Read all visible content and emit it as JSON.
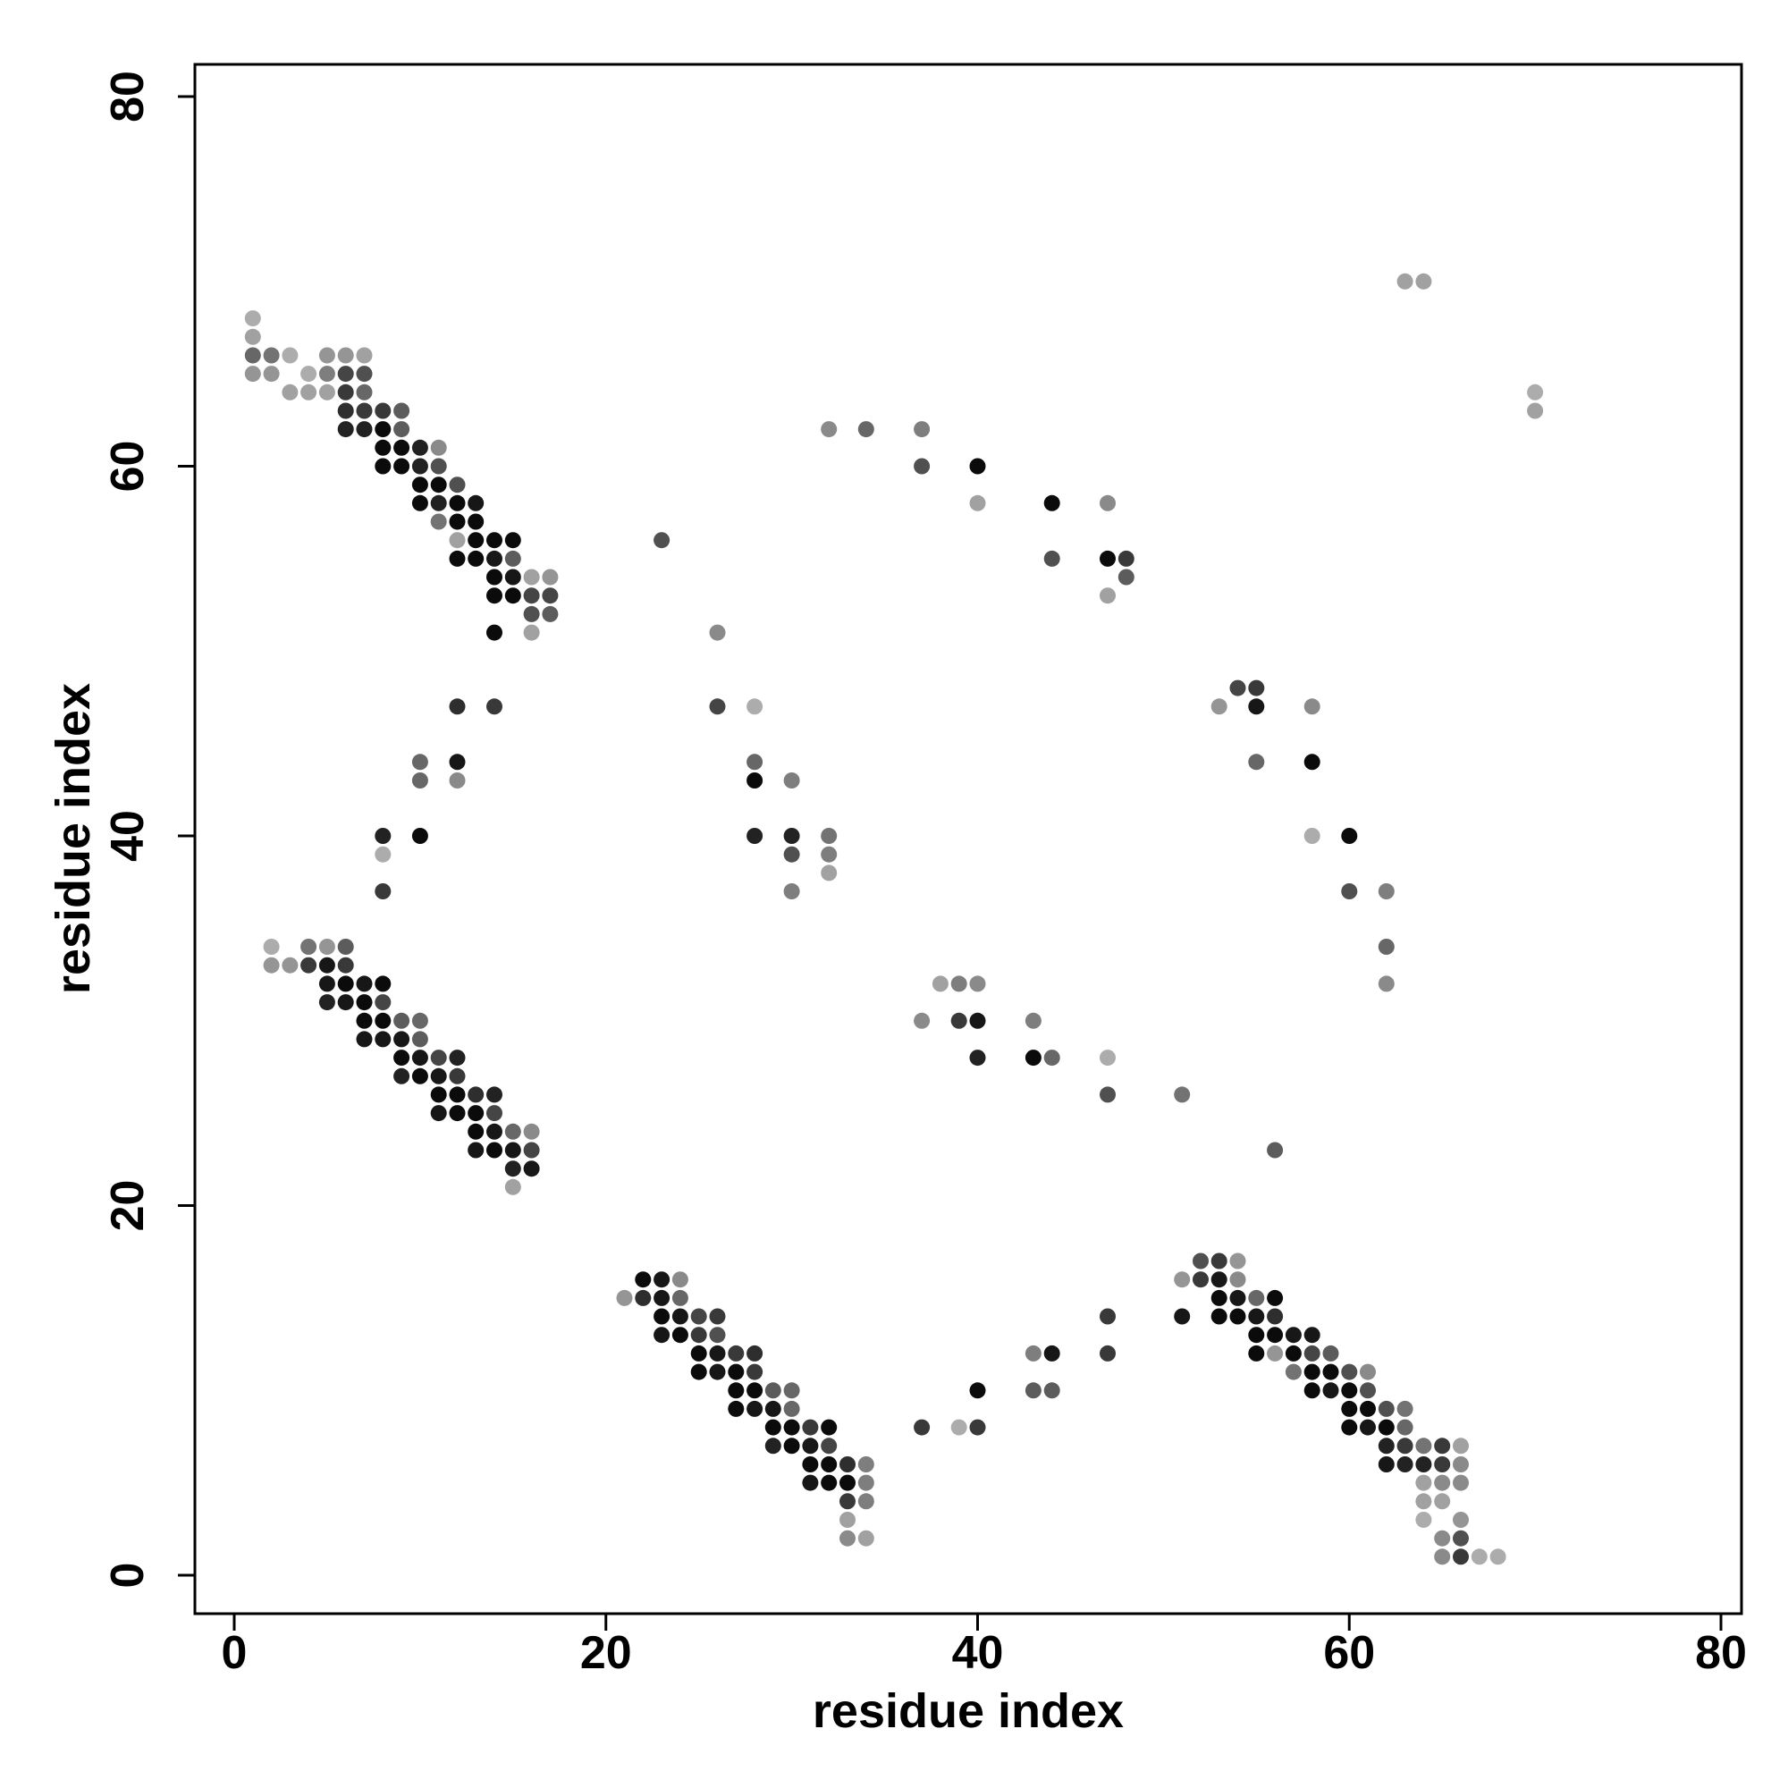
{
  "chart_data": {
    "type": "scatter",
    "title": "",
    "xlabel": "residue index",
    "ylabel": "residue index",
    "xlim": [
      -2,
      81
    ],
    "ylim": [
      -2,
      81
    ],
    "x_ticks": [
      "0",
      "20",
      "40",
      "60",
      "80"
    ],
    "y_ticks": [
      "0",
      "20",
      "40",
      "60",
      "80"
    ],
    "grid": false,
    "legend": "none",
    "point_color_scale": "grayscale: darker = stronger contact",
    "points": [
      [
        1,
        68,
        0.25
      ],
      [
        1,
        67,
        0.3
      ],
      [
        1,
        66,
        0.55
      ],
      [
        1,
        65,
        0.35
      ],
      [
        2,
        66,
        0.5
      ],
      [
        2,
        65,
        0.35
      ],
      [
        3,
        66,
        0.25
      ],
      [
        3,
        64,
        0.3
      ],
      [
        4,
        65,
        0.25
      ],
      [
        4,
        64,
        0.3
      ],
      [
        5,
        66,
        0.35
      ],
      [
        5,
        65,
        0.45
      ],
      [
        5,
        64,
        0.3
      ],
      [
        6,
        66,
        0.35
      ],
      [
        6,
        65,
        0.7
      ],
      [
        6,
        64,
        0.75
      ],
      [
        6,
        63,
        0.8
      ],
      [
        6,
        62,
        0.85
      ],
      [
        7,
        66,
        0.3
      ],
      [
        7,
        65,
        0.65
      ],
      [
        7,
        64,
        0.55
      ],
      [
        7,
        63,
        0.75
      ],
      [
        7,
        62,
        0.85
      ],
      [
        8,
        63,
        0.75
      ],
      [
        8,
        62,
        0.95
      ],
      [
        8,
        61,
        0.95
      ],
      [
        8,
        60,
        0.95
      ],
      [
        9,
        63,
        0.6
      ],
      [
        9,
        62,
        0.6
      ],
      [
        9,
        61,
        0.95
      ],
      [
        9,
        60,
        0.95
      ],
      [
        10,
        61,
        0.85
      ],
      [
        10,
        60,
        0.85
      ],
      [
        10,
        59,
        0.95
      ],
      [
        10,
        58,
        0.95
      ],
      [
        11,
        61,
        0.4
      ],
      [
        11,
        60,
        0.65
      ],
      [
        11,
        59,
        0.95
      ],
      [
        11,
        58,
        0.85
      ],
      [
        11,
        57,
        0.5
      ],
      [
        12,
        59,
        0.65
      ],
      [
        12,
        58,
        0.95
      ],
      [
        12,
        57,
        0.95
      ],
      [
        12,
        56,
        0.3
      ],
      [
        12,
        55,
        0.95
      ],
      [
        13,
        58,
        0.9
      ],
      [
        13,
        57,
        0.95
      ],
      [
        13,
        56,
        0.95
      ],
      [
        13,
        55,
        0.95
      ],
      [
        14,
        56,
        0.95
      ],
      [
        14,
        55,
        0.9
      ],
      [
        14,
        54,
        0.95
      ],
      [
        14,
        53,
        0.95
      ],
      [
        14,
        51,
        0.95
      ],
      [
        15,
        56,
        0.95
      ],
      [
        15,
        55,
        0.6
      ],
      [
        15,
        54,
        0.9
      ],
      [
        15,
        53,
        0.95
      ],
      [
        16,
        54,
        0.3
      ],
      [
        16,
        53,
        0.7
      ],
      [
        16,
        52,
        0.65
      ],
      [
        16,
        51,
        0.3
      ],
      [
        17,
        54,
        0.35
      ],
      [
        17,
        53,
        0.7
      ],
      [
        17,
        52,
        0.6
      ],
      [
        12,
        47,
        0.8
      ],
      [
        14,
        47,
        0.75
      ],
      [
        10,
        44,
        0.55
      ],
      [
        10,
        43,
        0.55
      ],
      [
        12,
        44,
        0.9
      ],
      [
        12,
        43,
        0.4
      ],
      [
        8,
        40,
        0.85
      ],
      [
        10,
        40,
        0.95
      ],
      [
        8,
        39,
        0.25
      ],
      [
        8,
        37,
        0.75
      ],
      [
        2,
        34,
        0.25
      ],
      [
        2,
        33,
        0.35
      ],
      [
        3,
        33,
        0.35
      ],
      [
        4,
        34,
        0.5
      ],
      [
        4,
        33,
        0.75
      ],
      [
        5,
        34,
        0.35
      ],
      [
        5,
        33,
        0.9
      ],
      [
        6,
        34,
        0.6
      ],
      [
        6,
        33,
        0.75
      ],
      [
        6,
        32,
        0.95
      ],
      [
        5,
        32,
        0.9
      ],
      [
        5,
        31,
        0.85
      ],
      [
        6,
        31,
        0.9
      ],
      [
        7,
        32,
        0.9
      ],
      [
        7,
        31,
        0.95
      ],
      [
        7,
        30,
        0.95
      ],
      [
        7,
        29,
        0.9
      ],
      [
        8,
        32,
        0.95
      ],
      [
        8,
        31,
        0.7
      ],
      [
        8,
        30,
        0.95
      ],
      [
        8,
        29,
        0.9
      ],
      [
        9,
        30,
        0.6
      ],
      [
        9,
        29,
        0.9
      ],
      [
        9,
        28,
        0.95
      ],
      [
        9,
        27,
        0.85
      ],
      [
        10,
        30,
        0.55
      ],
      [
        10,
        29,
        0.6
      ],
      [
        10,
        28,
        0.9
      ],
      [
        10,
        27,
        0.95
      ],
      [
        11,
        28,
        0.7
      ],
      [
        11,
        27,
        0.9
      ],
      [
        11,
        26,
        0.95
      ],
      [
        11,
        25,
        0.9
      ],
      [
        12,
        28,
        0.85
      ],
      [
        12,
        27,
        0.75
      ],
      [
        12,
        26,
        0.95
      ],
      [
        12,
        25,
        0.95
      ],
      [
        13,
        26,
        0.8
      ],
      [
        13,
        25,
        0.95
      ],
      [
        13,
        24,
        0.95
      ],
      [
        13,
        23,
        0.9
      ],
      [
        14,
        26,
        0.85
      ],
      [
        14,
        25,
        0.7
      ],
      [
        14,
        24,
        0.9
      ],
      [
        14,
        23,
        0.95
      ],
      [
        15,
        24,
        0.55
      ],
      [
        15,
        23,
        0.9
      ],
      [
        15,
        22,
        0.85
      ],
      [
        15,
        21,
        0.3
      ],
      [
        16,
        24,
        0.4
      ],
      [
        16,
        23,
        0.7
      ],
      [
        16,
        22,
        0.9
      ],
      [
        23,
        56,
        0.65
      ],
      [
        26,
        51,
        0.4
      ],
      [
        26,
        47,
        0.7
      ],
      [
        28,
        47,
        0.25
      ],
      [
        28,
        44,
        0.55
      ],
      [
        28,
        43,
        0.95
      ],
      [
        28,
        40,
        0.85
      ],
      [
        30,
        43,
        0.45
      ],
      [
        30,
        40,
        0.85
      ],
      [
        30,
        39,
        0.65
      ],
      [
        30,
        37,
        0.45
      ],
      [
        32,
        40,
        0.5
      ],
      [
        32,
        39,
        0.45
      ],
      [
        32,
        38,
        0.3
      ],
      [
        32,
        62,
        0.4
      ],
      [
        34,
        62,
        0.55
      ],
      [
        37,
        62,
        0.45
      ],
      [
        37,
        60,
        0.65
      ],
      [
        40,
        60,
        0.95
      ],
      [
        40,
        58,
        0.3
      ],
      [
        44,
        58,
        0.95
      ],
      [
        44,
        55,
        0.65
      ],
      [
        47,
        58,
        0.4
      ],
      [
        47,
        55,
        0.95
      ],
      [
        47,
        53,
        0.3
      ],
      [
        48,
        55,
        0.75
      ],
      [
        48,
        54,
        0.6
      ],
      [
        53,
        47,
        0.35
      ],
      [
        54,
        48,
        0.7
      ],
      [
        55,
        48,
        0.75
      ],
      [
        55,
        47,
        0.9
      ],
      [
        55,
        44,
        0.55
      ],
      [
        58,
        47,
        0.4
      ],
      [
        58,
        44,
        0.95
      ],
      [
        58,
        40,
        0.25
      ],
      [
        60,
        40,
        0.95
      ],
      [
        60,
        37,
        0.65
      ],
      [
        62,
        37,
        0.45
      ],
      [
        62,
        34,
        0.55
      ],
      [
        62,
        32,
        0.4
      ],
      [
        63,
        70,
        0.3
      ],
      [
        64,
        70,
        0.3
      ],
      [
        70,
        64,
        0.25
      ],
      [
        70,
        63,
        0.3
      ],
      [
        37,
        30,
        0.4
      ],
      [
        38,
        32,
        0.3
      ],
      [
        39,
        32,
        0.45
      ],
      [
        39,
        30,
        0.75
      ],
      [
        40,
        32,
        0.4
      ],
      [
        40,
        30,
        0.9
      ],
      [
        40,
        28,
        0.85
      ],
      [
        43,
        30,
        0.45
      ],
      [
        43,
        28,
        0.95
      ],
      [
        44,
        28,
        0.55
      ],
      [
        47,
        28,
        0.25
      ],
      [
        47,
        26,
        0.65
      ],
      [
        51,
        26,
        0.5
      ],
      [
        56,
        23,
        0.6
      ],
      [
        21,
        15,
        0.35
      ],
      [
        22,
        16,
        0.95
      ],
      [
        22,
        15,
        0.8
      ],
      [
        23,
        16,
        0.9
      ],
      [
        23,
        15,
        0.9
      ],
      [
        23,
        14,
        0.95
      ],
      [
        23,
        13,
        0.9
      ],
      [
        24,
        16,
        0.4
      ],
      [
        24,
        15,
        0.55
      ],
      [
        24,
        14,
        0.9
      ],
      [
        24,
        13,
        0.95
      ],
      [
        25,
        14,
        0.7
      ],
      [
        25,
        13,
        0.75
      ],
      [
        25,
        12,
        0.95
      ],
      [
        25,
        11,
        0.95
      ],
      [
        26,
        14,
        0.75
      ],
      [
        26,
        13,
        0.65
      ],
      [
        26,
        12,
        0.9
      ],
      [
        26,
        11,
        0.9
      ],
      [
        27,
        12,
        0.75
      ],
      [
        27,
        11,
        0.95
      ],
      [
        27,
        10,
        0.95
      ],
      [
        27,
        9,
        0.95
      ],
      [
        28,
        12,
        0.8
      ],
      [
        28,
        11,
        0.75
      ],
      [
        28,
        10,
        0.95
      ],
      [
        28,
        9,
        0.9
      ],
      [
        29,
        10,
        0.6
      ],
      [
        29,
        9,
        0.9
      ],
      [
        29,
        8,
        0.95
      ],
      [
        29,
        7,
        0.85
      ],
      [
        30,
        10,
        0.55
      ],
      [
        30,
        9,
        0.55
      ],
      [
        30,
        8,
        0.95
      ],
      [
        30,
        7,
        0.95
      ],
      [
        31,
        8,
        0.75
      ],
      [
        31,
        7,
        0.9
      ],
      [
        31,
        6,
        0.95
      ],
      [
        31,
        5,
        0.9
      ],
      [
        32,
        8,
        0.95
      ],
      [
        32,
        7,
        0.7
      ],
      [
        32,
        6,
        0.95
      ],
      [
        32,
        5,
        0.95
      ],
      [
        33,
        6,
        0.8
      ],
      [
        33,
        5,
        0.95
      ],
      [
        33,
        4,
        0.75
      ],
      [
        33,
        3,
        0.3
      ],
      [
        33,
        2,
        0.4
      ],
      [
        34,
        6,
        0.45
      ],
      [
        34,
        5,
        0.45
      ],
      [
        34,
        4,
        0.45
      ],
      [
        34,
        2,
        0.3
      ],
      [
        37,
        8,
        0.75
      ],
      [
        39,
        8,
        0.25
      ],
      [
        40,
        10,
        0.95
      ],
      [
        40,
        8,
        0.75
      ],
      [
        43,
        12,
        0.45
      ],
      [
        43,
        10,
        0.6
      ],
      [
        44,
        12,
        0.9
      ],
      [
        44,
        10,
        0.6
      ],
      [
        47,
        14,
        0.75
      ],
      [
        47,
        12,
        0.75
      ],
      [
        51,
        16,
        0.35
      ],
      [
        51,
        14,
        0.9
      ],
      [
        52,
        17,
        0.65
      ],
      [
        52,
        16,
        0.75
      ],
      [
        53,
        17,
        0.75
      ],
      [
        53,
        16,
        0.9
      ],
      [
        53,
        15,
        0.95
      ],
      [
        53,
        14,
        0.95
      ],
      [
        54,
        17,
        0.35
      ],
      [
        54,
        16,
        0.4
      ],
      [
        54,
        15,
        0.9
      ],
      [
        54,
        14,
        0.95
      ],
      [
        55,
        15,
        0.55
      ],
      [
        55,
        14,
        0.9
      ],
      [
        55,
        13,
        0.95
      ],
      [
        55,
        12,
        0.95
      ],
      [
        56,
        15,
        0.95
      ],
      [
        56,
        14,
        0.8
      ],
      [
        56,
        13,
        0.95
      ],
      [
        56,
        12,
        0.35
      ],
      [
        57,
        13,
        0.9
      ],
      [
        57,
        12,
        0.95
      ],
      [
        57,
        11,
        0.5
      ],
      [
        58,
        13,
        0.9
      ],
      [
        58,
        12,
        0.7
      ],
      [
        58,
        11,
        0.95
      ],
      [
        58,
        10,
        0.95
      ],
      [
        59,
        12,
        0.6
      ],
      [
        59,
        11,
        0.95
      ],
      [
        59,
        10,
        0.9
      ],
      [
        60,
        11,
        0.65
      ],
      [
        60,
        10,
        0.95
      ],
      [
        60,
        9,
        0.95
      ],
      [
        60,
        8,
        0.95
      ],
      [
        61,
        11,
        0.4
      ],
      [
        61,
        10,
        0.65
      ],
      [
        61,
        9,
        0.95
      ],
      [
        61,
        8,
        0.9
      ],
      [
        62,
        9,
        0.65
      ],
      [
        62,
        8,
        0.95
      ],
      [
        62,
        7,
        0.85
      ],
      [
        62,
        6,
        0.9
      ],
      [
        63,
        9,
        0.5
      ],
      [
        63,
        8,
        0.55
      ],
      [
        63,
        7,
        0.75
      ],
      [
        63,
        6,
        0.85
      ],
      [
        64,
        7,
        0.5
      ],
      [
        64,
        6,
        0.85
      ],
      [
        64,
        5,
        0.3
      ],
      [
        64,
        4,
        0.3
      ],
      [
        64,
        3,
        0.25
      ],
      [
        65,
        7,
        0.75
      ],
      [
        65,
        6,
        0.75
      ],
      [
        65,
        5,
        0.4
      ],
      [
        65,
        4,
        0.3
      ],
      [
        65,
        2,
        0.4
      ],
      [
        65,
        1,
        0.4
      ],
      [
        66,
        7,
        0.3
      ],
      [
        66,
        6,
        0.4
      ],
      [
        66,
        5,
        0.4
      ],
      [
        66,
        3,
        0.35
      ],
      [
        66,
        2,
        0.65
      ],
      [
        66,
        1,
        0.75
      ],
      [
        67,
        1,
        0.25
      ],
      [
        68,
        1,
        0.25
      ]
    ]
  }
}
